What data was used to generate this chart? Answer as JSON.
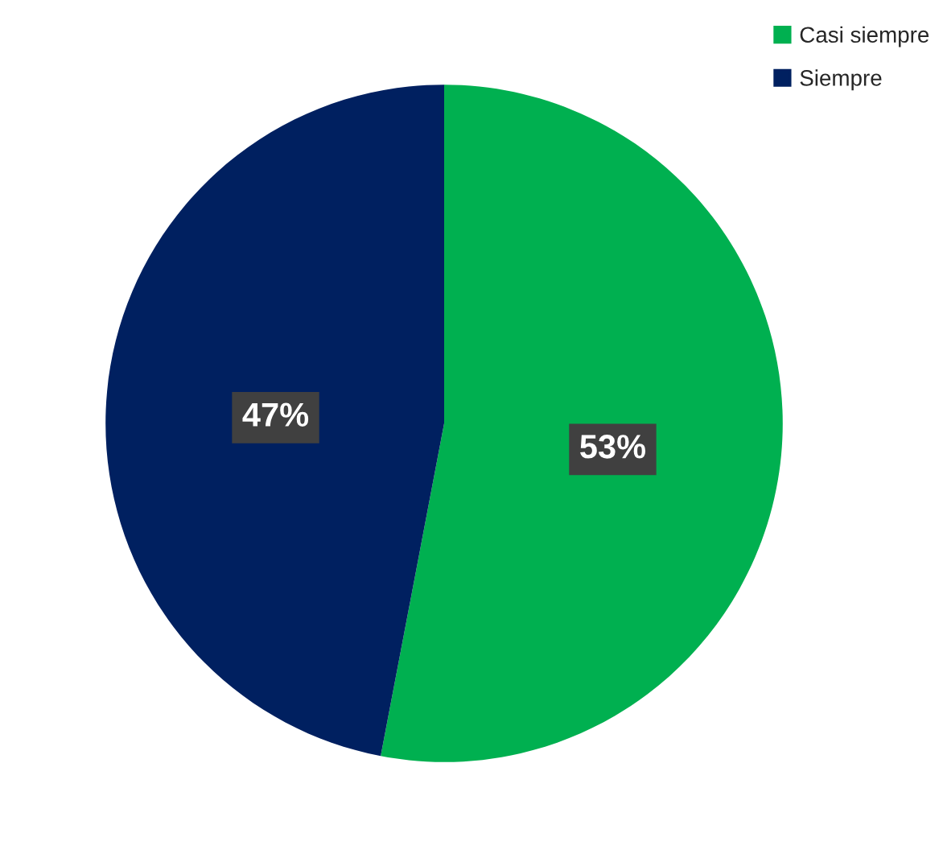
{
  "chart_data": {
    "type": "pie",
    "categories": [
      "Casi siempre",
      "Siempre"
    ],
    "values": [
      53,
      47
    ],
    "colors": [
      "#00b050",
      "#002060"
    ],
    "value_labels": [
      "53%",
      "47%"
    ],
    "legend": "top right"
  }
}
